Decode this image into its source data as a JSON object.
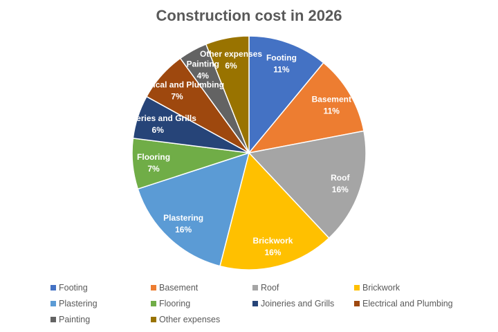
{
  "chart_data": {
    "type": "pie",
    "title": "Construction cost in 2026",
    "categories": [
      "Footing",
      "Basement",
      "Roof",
      "Brickwork",
      "Plastering",
      "Flooring",
      "Joineries and Grills",
      "Electrical and Plumbing",
      "Painting",
      "Other expenses"
    ],
    "values": [
      11,
      11,
      16,
      16,
      16,
      7,
      6,
      7,
      4,
      6
    ],
    "labels": [
      "11%",
      "11%",
      "16%",
      "16%",
      "16%",
      "7%",
      "6%",
      "7%",
      "4%",
      "6%"
    ],
    "colors": [
      "#4472C4",
      "#ED7D31",
      "#A5A5A5",
      "#FFC000",
      "#5B9BD5",
      "#70AD47",
      "#264478",
      "#9E480E",
      "#636363",
      "#997300"
    ],
    "legend_position": "bottom"
  }
}
